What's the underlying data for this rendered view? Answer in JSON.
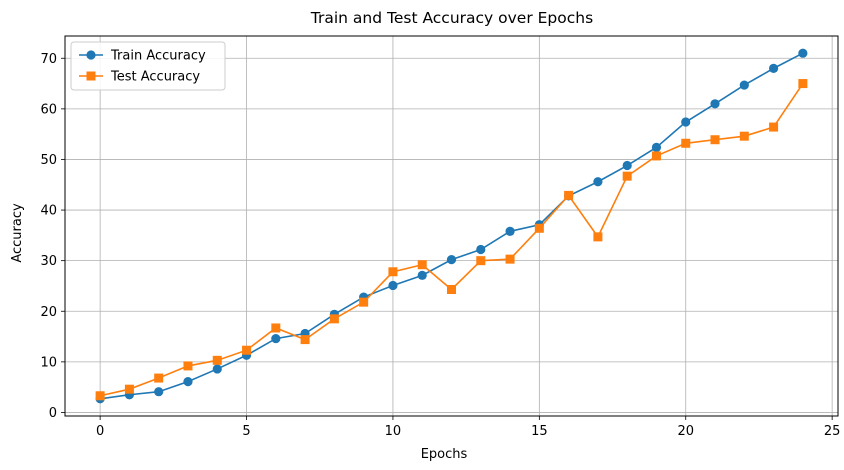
{
  "chart_data": {
    "type": "line",
    "title": "Train and Test Accuracy over Epochs",
    "xlabel": "Epochs",
    "ylabel": "Accuracy",
    "xlim": [
      -1.2,
      25.2
    ],
    "ylim": [
      -0.7,
      74.4
    ],
    "xticks": [
      0,
      5,
      10,
      15,
      20,
      25
    ],
    "yticks": [
      0,
      10,
      20,
      30,
      40,
      50,
      60,
      70
    ],
    "grid": true,
    "legend": "top-left",
    "x": [
      0,
      1,
      2,
      3,
      4,
      5,
      6,
      7,
      8,
      9,
      10,
      11,
      12,
      13,
      14,
      15,
      16,
      17,
      18,
      19,
      20,
      21,
      22,
      23,
      24
    ],
    "series": [
      {
        "name": "Train Accuracy",
        "color": "#1f77b4",
        "marker": "circle",
        "values": [
          2.7,
          3.5,
          4.1,
          6.1,
          8.6,
          11.3,
          14.6,
          15.6,
          19.4,
          22.8,
          25.1,
          27.1,
          30.2,
          32.2,
          35.8,
          37.1,
          42.8,
          45.6,
          48.8,
          52.4,
          57.4,
          61.0,
          64.7,
          68.0,
          71.0
        ]
      },
      {
        "name": "Test Accuracy",
        "color": "#ff7f0e",
        "marker": "square",
        "values": [
          3.3,
          4.6,
          6.8,
          9.2,
          10.3,
          12.3,
          16.7,
          14.4,
          18.5,
          21.8,
          27.8,
          29.2,
          24.3,
          30.0,
          30.3,
          36.4,
          42.9,
          34.7,
          46.7,
          50.7,
          53.2,
          53.9,
          54.6,
          56.4,
          65.0
        ]
      }
    ]
  }
}
